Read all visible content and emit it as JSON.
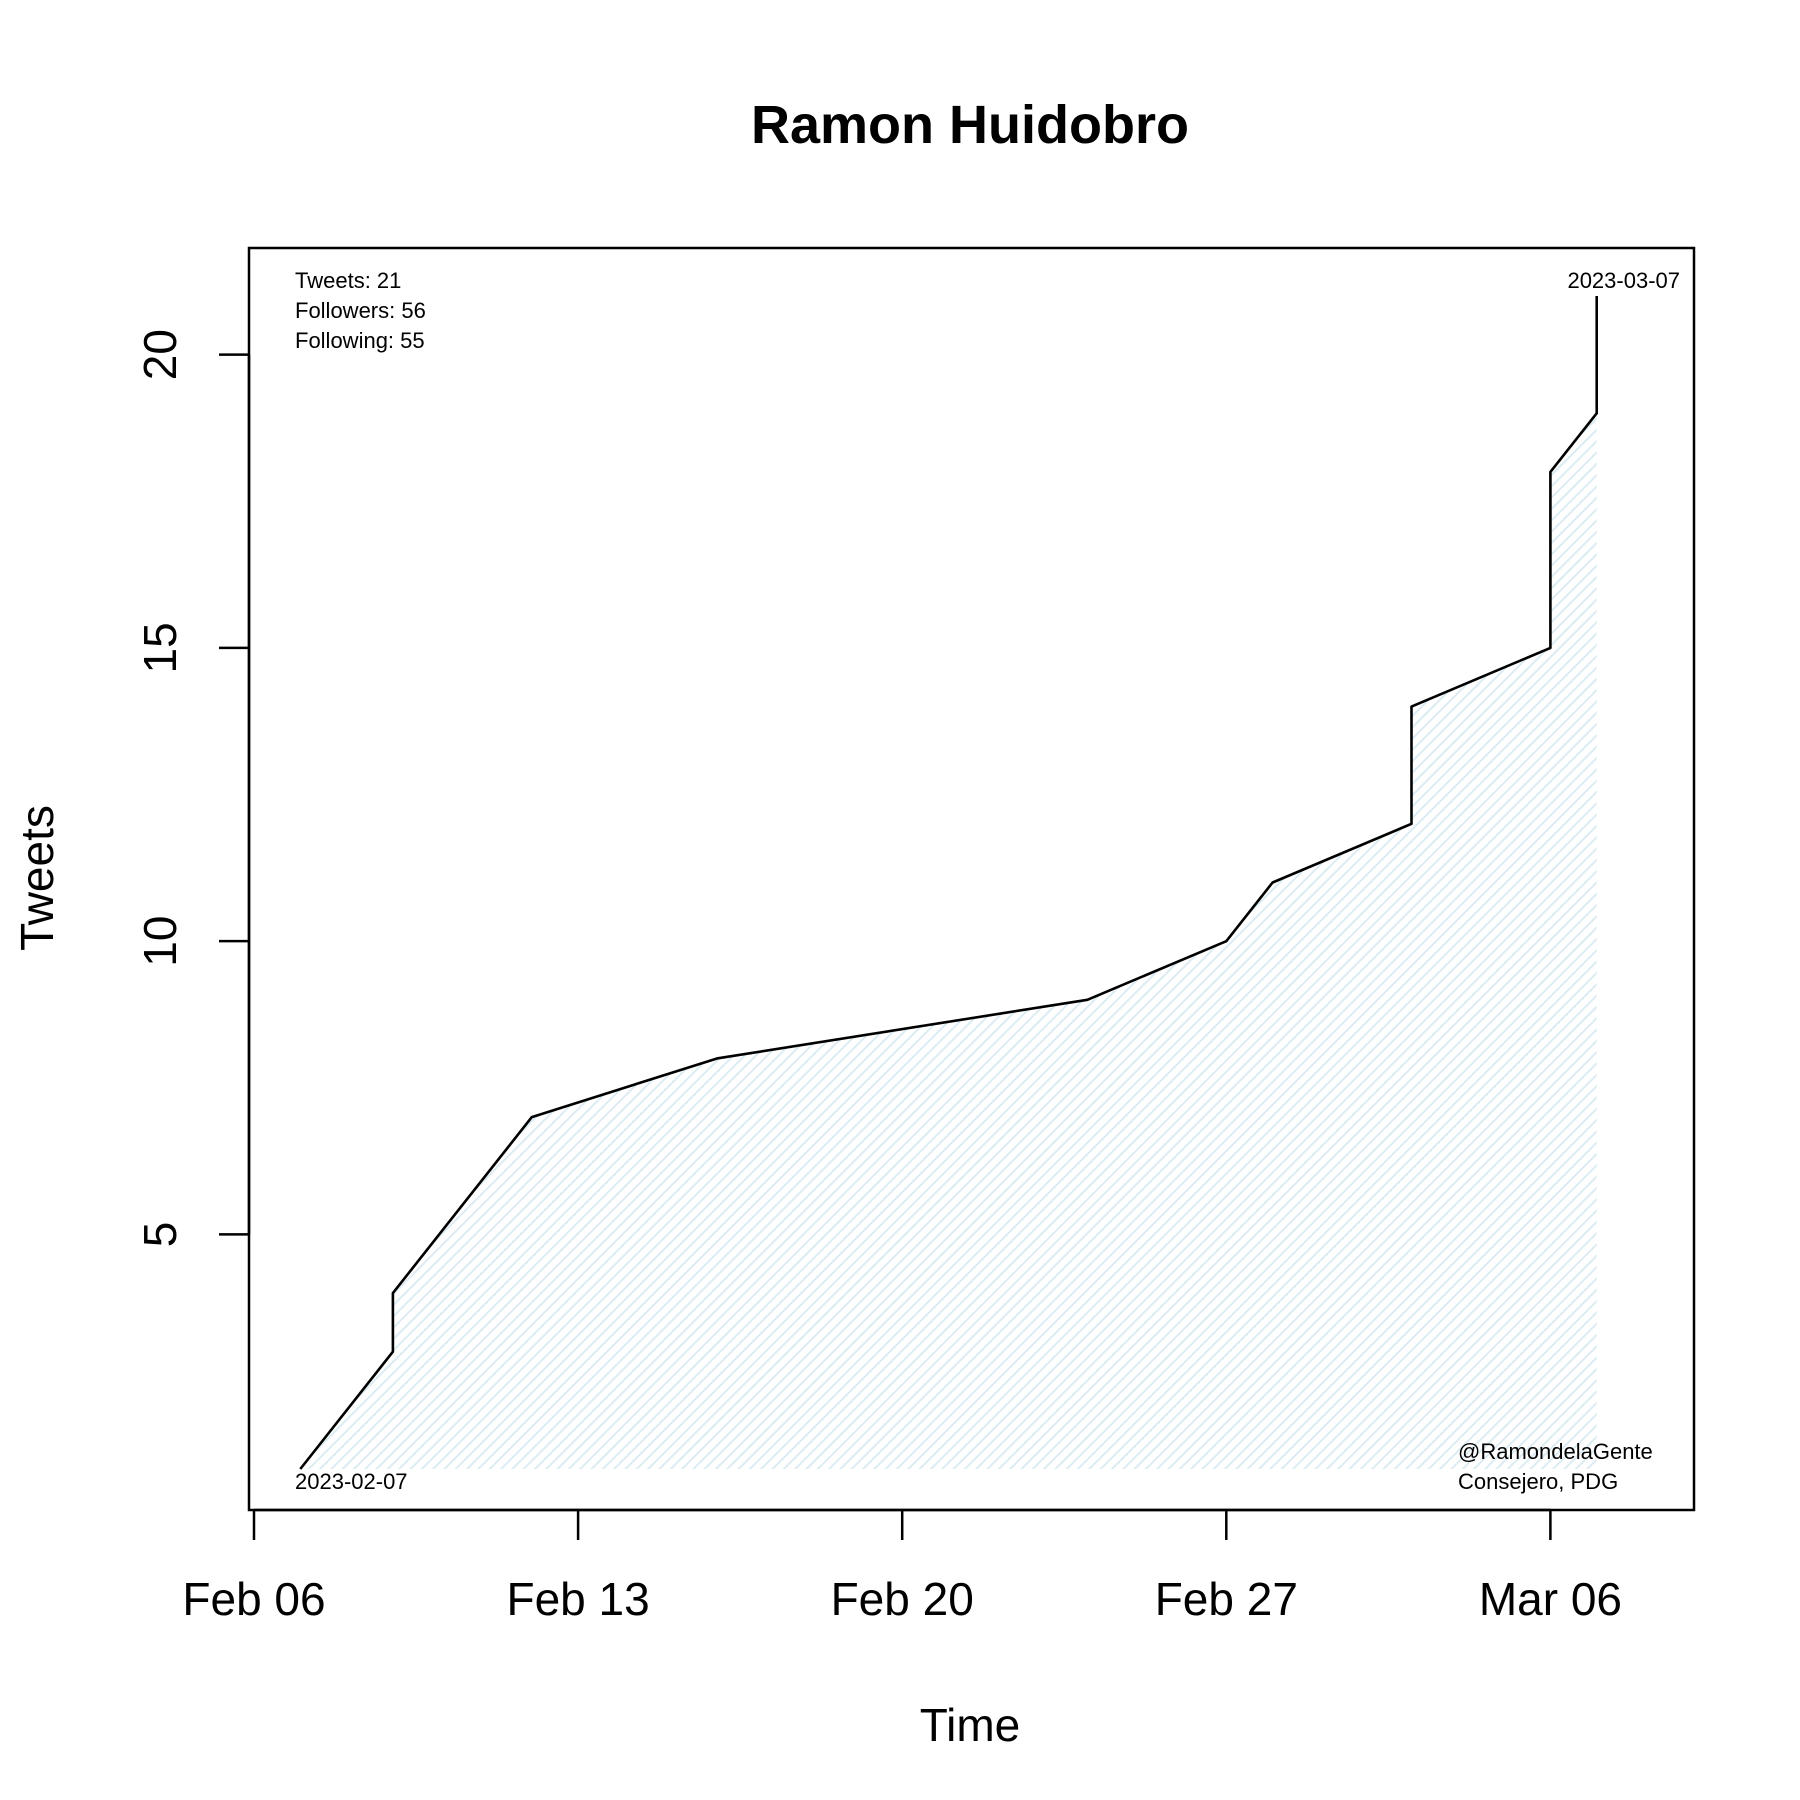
{
  "chart_data": {
    "type": "area",
    "title": "Ramon Huidobro",
    "xlabel": "Time",
    "ylabel": "Tweets",
    "x_axis": "date",
    "xlim": [
      "2023-02-06",
      "2023-03-08"
    ],
    "ylim": [
      1,
      21
    ],
    "x_ticks": [
      {
        "date": "2023-02-06",
        "label": "Feb 06"
      },
      {
        "date": "2023-02-13",
        "label": "Feb 13"
      },
      {
        "date": "2023-02-20",
        "label": "Feb 20"
      },
      {
        "date": "2023-02-27",
        "label": "Feb 27"
      },
      {
        "date": "2023-03-06",
        "label": "Mar 06"
      }
    ],
    "y_ticks": [
      5,
      10,
      15,
      20
    ],
    "grid": false,
    "fill_color": "#e3f2f6",
    "line_color": "#000000",
    "series": [
      {
        "points": [
          {
            "x": "2023-02-07",
            "y": 1
          },
          {
            "x": "2023-02-09",
            "y": 3
          },
          {
            "x": "2023-02-09",
            "y": 4
          },
          {
            "x": "2023-02-12",
            "y": 7
          },
          {
            "x": "2023-02-16",
            "y": 8
          },
          {
            "x": "2023-02-24",
            "y": 9
          },
          {
            "x": "2023-02-27",
            "y": 10
          },
          {
            "x": "2023-02-28",
            "y": 11
          },
          {
            "x": "2023-03-03",
            "y": 12
          },
          {
            "x": "2023-03-03",
            "y": 14
          },
          {
            "x": "2023-03-06",
            "y": 15
          },
          {
            "x": "2023-03-06",
            "y": 18
          },
          {
            "x": "2023-03-07",
            "y": 19
          },
          {
            "x": "2023-03-07",
            "y": 21
          }
        ]
      }
    ],
    "annotations": {
      "stats": [
        "Tweets: 21",
        "Followers: 56",
        "Following: 55"
      ],
      "start_date": "2023-02-07",
      "end_date": "2023-03-07",
      "handle": "@RamondelaGente",
      "role": "Consejero, PDG"
    }
  }
}
